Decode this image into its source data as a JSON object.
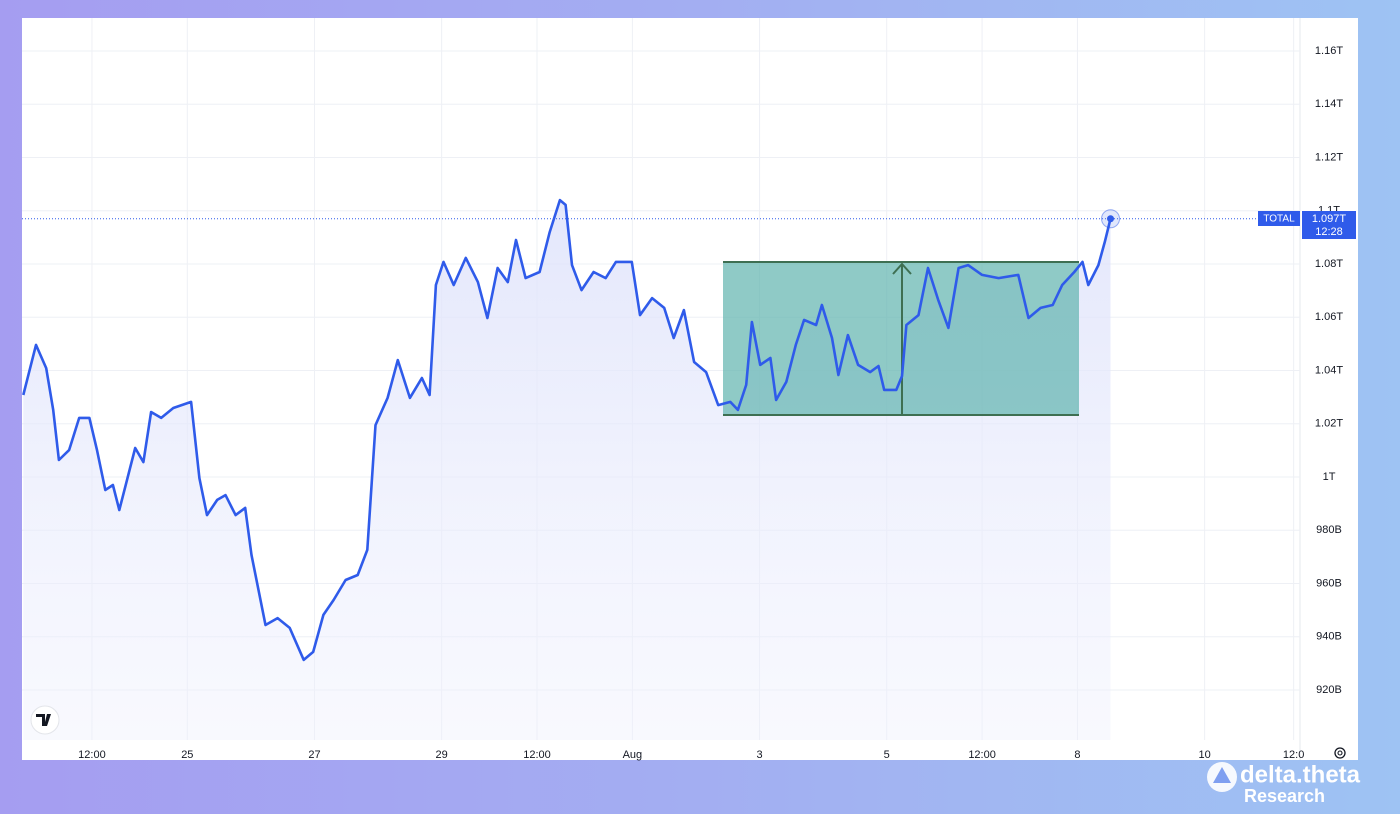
{
  "chart_data": {
    "type": "line",
    "series": [
      {
        "name": "TOTAL",
        "color": "#2f5bea",
        "x": [
          22.42,
          22.62,
          22.78,
          22.89,
          22.98,
          23.14,
          23.3,
          23.46,
          23.58,
          23.71,
          23.83,
          23.93,
          24.06,
          24.18,
          24.31,
          24.43,
          24.59,
          24.78,
          25.06,
          25.19,
          25.31,
          25.47,
          25.6,
          25.76,
          25.91,
          26.01,
          26.23,
          26.42,
          26.61,
          26.83,
          26.98,
          27.14,
          27.3,
          27.49,
          27.68,
          27.83,
          27.96,
          28.15,
          28.31,
          28.5,
          28.69,
          28.81,
          28.91,
          29.03,
          29.19,
          29.38,
          29.57,
          29.72,
          29.88,
          30.04,
          30.17,
          30.32,
          30.54,
          30.7,
          30.86,
          30.95,
          31.05,
          31.2,
          31.39,
          31.58,
          31.74,
          31.99,
          32.12,
          32.31,
          32.5,
          32.65,
          32.81,
          32.97,
          33.16,
          33.35,
          33.54,
          33.66,
          33.79,
          33.88,
          34.01,
          34.17,
          34.26,
          34.42,
          34.57,
          34.7,
          34.89,
          34.98,
          35.14,
          35.24,
          35.39,
          35.55,
          35.74,
          35.87,
          35.96,
          36.15,
          36.24,
          36.31,
          36.5,
          36.65,
          36.81,
          36.97,
          37.13,
          37.28,
          37.5,
          37.76,
          38.07,
          38.23,
          38.42,
          38.61,
          38.76,
          38.95,
          39.08,
          39.17,
          39.33,
          39.43,
          39.52
        ],
        "values": [
          1030.8,
          1049.6,
          1040.9,
          1025.2,
          1006.4,
          1010.1,
          1022.2,
          1022.2,
          1010.1,
          995.1,
          997.0,
          987.6,
          999.6,
          1010.9,
          1005.6,
          1024.4,
          1022.2,
          1025.9,
          1028.2,
          999.6,
          985.7,
          991.4,
          993.2,
          985.7,
          988.4,
          970.7,
          944.4,
          947.0,
          943.3,
          931.3,
          934.3,
          948.2,
          953.8,
          961.3,
          963.2,
          972.6,
          1019.5,
          1029.7,
          1043.9,
          1029.7,
          1037.2,
          1030.8,
          1072.1,
          1080.8,
          1072.1,
          1082.3,
          1073.2,
          1059.7,
          1078.5,
          1073.2,
          1089.0,
          1074.7,
          1077.0,
          1092.0,
          1104.0,
          1102.2,
          1079.6,
          1070.2,
          1077.0,
          1074.7,
          1080.8,
          1080.8,
          1060.8,
          1067.2,
          1063.5,
          1052.2,
          1062.7,
          1043.2,
          1039.4,
          1027.0,
          1028.2,
          1025.2,
          1034.6,
          1058.2,
          1042.1,
          1044.7,
          1028.9,
          1035.7,
          1049.6,
          1059.0,
          1057.1,
          1064.6,
          1052.2,
          1038.3,
          1053.3,
          1042.1,
          1039.4,
          1041.7,
          1032.7,
          1032.7,
          1037.9,
          1057.1,
          1060.8,
          1078.5,
          1066.5,
          1056.0,
          1078.5,
          1079.6,
          1075.9,
          1074.7,
          1075.9,
          1059.7,
          1063.5,
          1064.6,
          1072.1,
          1077.0,
          1080.8,
          1072.1,
          1079.6,
          1088.3,
          1097
        ],
        "value_labels": [
          null,
          null,
          null,
          null,
          null,
          null,
          null,
          null,
          null,
          null,
          null,
          null,
          null,
          null,
          null,
          null,
          null,
          null,
          null,
          null,
          null,
          null,
          null,
          null,
          null,
          null,
          null,
          null,
          null,
          null,
          null,
          null,
          null,
          null,
          null,
          null,
          null,
          null,
          null,
          null,
          null,
          null,
          null,
          null,
          null,
          null,
          null,
          null,
          null,
          null,
          null,
          null,
          null,
          null,
          null,
          null,
          null,
          null,
          null,
          null,
          null,
          null,
          null,
          null,
          null,
          null,
          null,
          null,
          null,
          null,
          null,
          null,
          null,
          null,
          null,
          null,
          null,
          null,
          null,
          null,
          null,
          null,
          null,
          null,
          null,
          null,
          null,
          null,
          null,
          null,
          null,
          null,
          null,
          null,
          null,
          null,
          null,
          null,
          null,
          null,
          null,
          null,
          null,
          null,
          null,
          null,
          null,
          null,
          null,
          null,
          "1.097T"
        ]
      }
    ],
    "time_label": "12:28",
    "xlim": [
      22.4,
      42.5
    ],
    "xticks": [
      {
        "value": 23.5,
        "label": "12:00"
      },
      25,
      27,
      29,
      {
        "value": 30.5,
        "label": "12:00"
      },
      {
        "value": 32,
        "label": "Aug"
      },
      {
        "value": 34,
        "label": "3"
      },
      {
        "value": 36,
        "label": "5"
      },
      {
        "value": 37.5,
        "label": "12:00"
      },
      {
        "value": 39,
        "label": "8"
      },
      {
        "value": 41,
        "label": "10"
      },
      {
        "value": 42.4,
        "label": "12:0"
      }
    ],
    "ylim": [
      893.7,
      1172.4
    ],
    "yticks": [
      {
        "value": 920,
        "label": "920B"
      },
      {
        "value": 940,
        "label": "940B"
      },
      {
        "value": 960,
        "label": "960B"
      },
      {
        "value": 980,
        "label": "980B"
      },
      {
        "value": 1000,
        "label": "1T"
      },
      {
        "value": 1020,
        "label": "1.02T"
      },
      {
        "value": 1040,
        "label": "1.04T"
      },
      {
        "value": 1060,
        "label": "1.06T"
      },
      {
        "value": 1080,
        "label": "1.08T"
      },
      {
        "value": 1100,
        "label": "1.1T"
      },
      {
        "value": 1120,
        "label": "1.12T"
      },
      {
        "value": 1140,
        "label": "1.14T"
      },
      {
        "value": 1160,
        "label": "1.16T"
      }
    ],
    "grid": true
  },
  "watermark": {
    "brand": "delta.theta",
    "sub": "Research"
  }
}
